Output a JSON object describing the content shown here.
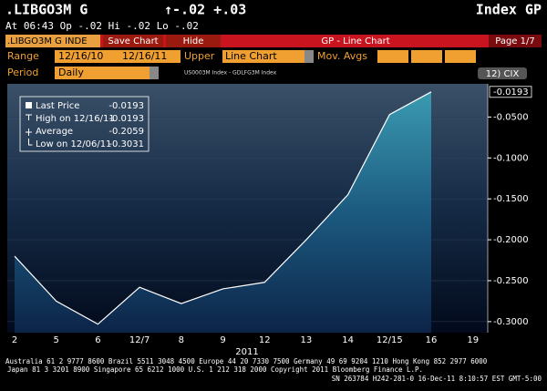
{
  "header": {
    "ticker": ".LIBGO3M G",
    "change": "↑-.02 +.03",
    "function": "Index GP",
    "quote": "At 06:43  Op -.02 Hi -.02 Lo -.02"
  },
  "toolbar": {
    "security": ".LIBGO3M G INDE",
    "save": "Save Chart",
    "hide": "Hide",
    "title": "GP - Line Chart",
    "page": "Page 1/7"
  },
  "controls": {
    "range_label": "Range",
    "start": "12/16/10",
    "dash": "-",
    "end": "12/16/11",
    "upper_label": "Upper",
    "upper": "Line Chart",
    "mov_avgs": "Mov. Avgs",
    "period_label": "Period",
    "period": "Daily",
    "spread": "US0003M Index - GDLFG3M Index",
    "cix": "12) CIX"
  },
  "chart_data": {
    "type": "area",
    "categories": [
      "2",
      "5",
      "6",
      "12/7",
      "8",
      "9",
      "12",
      "13",
      "14",
      "12/15",
      "16",
      "19"
    ],
    "values": [
      -0.22,
      -0.275,
      -0.3031,
      -0.258,
      -0.278,
      -0.26,
      -0.252,
      -0.2,
      -0.145,
      -0.047,
      -0.0193,
      null
    ],
    "x_label": "2011",
    "ylim": [
      -0.3135,
      -0.0095
    ],
    "yticks": [
      {
        "value": -0.05,
        "label": "-0.0500"
      },
      {
        "value": -0.1,
        "label": "-0.1000"
      },
      {
        "value": -0.15,
        "label": "-0.1500"
      },
      {
        "value": -0.2,
        "label": "-0.2000"
      },
      {
        "value": -0.25,
        "label": "-0.2500"
      },
      {
        "value": -0.3,
        "label": "-0.3000"
      }
    ],
    "grid": true,
    "color": "#ffffff",
    "stats": [
      {
        "name": "Last Price",
        "value": -0.0193
      },
      {
        "name": "High on 12/16/11",
        "value": -0.0193
      },
      {
        "name": "Average",
        "value": -0.2059
      },
      {
        "name": "Low on 12/06/11",
        "value": -0.3031
      }
    ]
  },
  "footer": {
    "lines": [
      "Australia 61 2 9777 8600 Brazil 5511 3048 4500 Europe 44 20 7330 7500 Germany 49 69 9204 1210 Hong Kong 852 2977 6000",
      "Japan 81 3 3201 8900      Singapore 65 6212 1000      U.S. 1 212 318 2000      Copyright 2011 Bloomberg Finance L.P.",
      "SN 263784 H242-281-0 16-Dec-11  8:10:57 EST  GMT-5:00"
    ]
  }
}
